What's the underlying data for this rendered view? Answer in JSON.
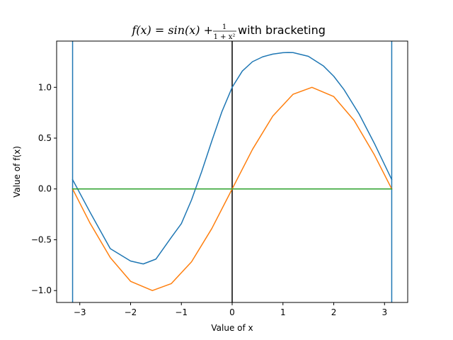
{
  "chart_data": {
    "type": "line",
    "title": {
      "math_lhs": "f(x) = sin(x) + ",
      "frac_numerator": "1",
      "frac_denominator": "1 + x²",
      "suffix": " with bracketing"
    },
    "xlabel": "Value of x",
    "ylabel": "Value of f(x)",
    "xlim": [
      -3.456,
      3.456
    ],
    "ylim": [
      -1.117,
      1.455
    ],
    "xticks": [
      -3,
      -2,
      -1,
      0,
      1,
      2,
      3
    ],
    "xtick_labels": [
      "−3",
      "−2",
      "−1",
      "0",
      "1",
      "2",
      "3"
    ],
    "yticks": [
      -1.0,
      -0.5,
      0.0,
      0.5,
      1.0
    ],
    "ytick_labels": [
      "−1.0",
      "−0.5",
      "0.0",
      "0.5",
      "1.0"
    ],
    "grid": false,
    "legend": "none",
    "series": [
      {
        "color": "#1f77b4",
        "x": [
          -3.1416,
          -2.8,
          -2.4,
          -2.0,
          -1.75,
          -1.5,
          -1.2,
          -1.0,
          -0.8,
          -0.6,
          -0.4,
          -0.2,
          0.0,
          0.2,
          0.4,
          0.6,
          0.8,
          1.0,
          1.1,
          1.2,
          1.5,
          1.8,
          2.0,
          2.2,
          2.5,
          2.8,
          3.1416
        ],
        "y": [
          0.092,
          -0.227,
          -0.587,
          -0.709,
          -0.738,
          -0.69,
          -0.478,
          -0.341,
          -0.108,
          0.171,
          0.473,
          0.763,
          1.0,
          1.16,
          1.252,
          1.3,
          1.327,
          1.341,
          1.343,
          1.342,
          1.305,
          1.209,
          1.109,
          0.979,
          0.737,
          0.448,
          0.092
        ]
      },
      {
        "color": "#ff7f0e",
        "x": [
          -3.1416,
          -2.8,
          -2.4,
          -2.0,
          -1.5708,
          -1.2,
          -0.8,
          -0.4,
          0.0,
          0.4,
          0.8,
          1.2,
          1.5708,
          2.0,
          2.4,
          2.8,
          3.1416
        ],
        "y": [
          0.0,
          -0.335,
          -0.675,
          -0.909,
          -1.0,
          -0.932,
          -0.717,
          -0.389,
          0.0,
          0.389,
          0.717,
          0.932,
          1.0,
          0.909,
          0.675,
          0.335,
          0.0
        ]
      },
      {
        "color": "#2ca02c",
        "x": [
          -3.1416,
          3.1416
        ],
        "y": [
          0.0,
          0.0
        ]
      }
    ],
    "vertical_lines": [
      {
        "x": -3.1416,
        "color": "#1f77b4"
      },
      {
        "x": 0.0,
        "color": "#000000"
      },
      {
        "x": 3.1416,
        "color": "#1f77b4"
      }
    ]
  }
}
